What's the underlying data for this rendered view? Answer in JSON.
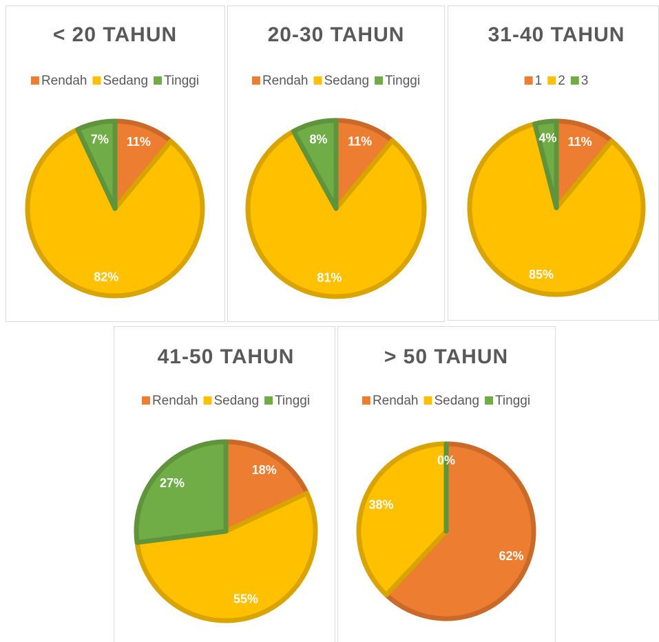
{
  "chart_data": [
    {
      "type": "pie",
      "title": "< 20 TAHUN",
      "categories": [
        "Rendah",
        "Sedang",
        "Tinggi"
      ],
      "values": [
        11,
        82,
        7
      ],
      "value_labels": [
        "11%",
        "82%",
        "7%"
      ],
      "colors": [
        "#ED7D31",
        "#FFC000",
        "#70AD47"
      ]
    },
    {
      "type": "pie",
      "title": "20-30 TAHUN",
      "categories": [
        "Rendah",
        "Sedang",
        "Tinggi"
      ],
      "values": [
        11,
        81,
        8
      ],
      "value_labels": [
        "11%",
        "81%",
        "8%"
      ],
      "colors": [
        "#ED7D31",
        "#FFC000",
        "#70AD47"
      ]
    },
    {
      "type": "pie",
      "title": "31-40 TAHUN",
      "categories": [
        "1",
        "2",
        "3"
      ],
      "values": [
        11,
        85,
        4
      ],
      "value_labels": [
        "11%",
        "85%",
        "4%"
      ],
      "colors": [
        "#ED7D31",
        "#FFC000",
        "#70AD47"
      ]
    },
    {
      "type": "pie",
      "title": "41-50 TAHUN",
      "categories": [
        "Rendah",
        "Sedang",
        "Tinggi"
      ],
      "values": [
        18,
        55,
        27
      ],
      "value_labels": [
        "18%",
        "55%",
        "27%"
      ],
      "colors": [
        "#ED7D31",
        "#FFC000",
        "#70AD47"
      ]
    },
    {
      "type": "pie",
      "title": "> 50 TAHUN",
      "categories": [
        "Rendah",
        "Sedang",
        "Tinggi"
      ],
      "values": [
        62,
        38,
        0
      ],
      "value_labels": [
        "62%",
        "38%",
        "0%"
      ],
      "colors": [
        "#ED7D31",
        "#FFC000",
        "#70AD47"
      ]
    }
  ]
}
